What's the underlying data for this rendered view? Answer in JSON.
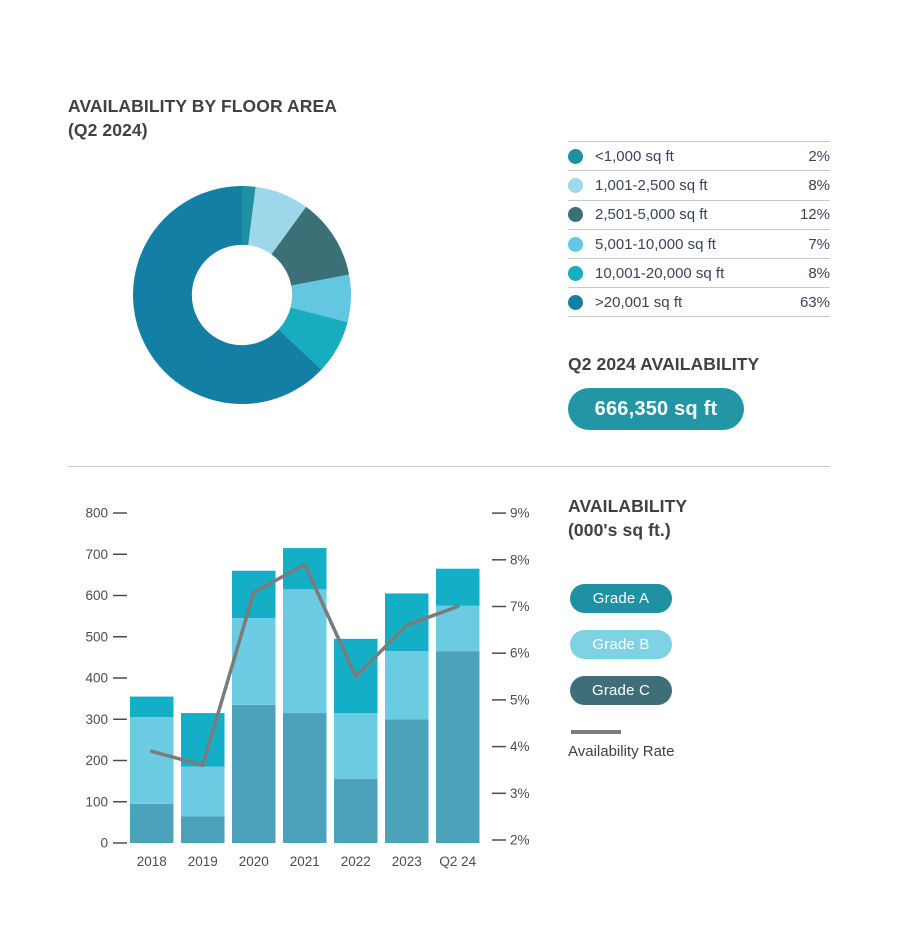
{
  "donut_section": {
    "title_line1": "AVAILABILITY BY FLOOR AREA",
    "title_line2": "(Q2 2024)",
    "legend": [
      {
        "label": "<1,000 sq ft",
        "value": "2%",
        "color": "#1E90A0"
      },
      {
        "label": "1,001-2,500 sq ft",
        "value": "8%",
        "color": "#9CD8EA"
      },
      {
        "label": "2,501-5,000 sq ft",
        "value": "12%",
        "color": "#3C7077"
      },
      {
        "label": "5,001-10,000 sq ft",
        "value": "7%",
        "color": "#64C7E2"
      },
      {
        "label": "10,001-20,000 sq ft",
        "value": "8%",
        "color": "#17ACBE"
      },
      {
        "label": ">20,001 sq ft",
        "value": "63%",
        "color": "#147FA5"
      }
    ],
    "availability_heading": "Q2 2024 AVAILABILITY",
    "availability_badge": "666,350 sq ft",
    "badge_color": "#2296A4"
  },
  "bar_section": {
    "heading_line1": "AVAILABILITY",
    "heading_line2": "(000's sq ft.)",
    "pills": [
      {
        "label": "Grade A",
        "color": "#1E91A2"
      },
      {
        "label": "Grade B",
        "color": "#7ED2E4"
      },
      {
        "label": "Grade C",
        "color": "#3E6F78"
      }
    ],
    "line_legend_label": "Availability Rate",
    "line_color": "#7B7B7B"
  },
  "chart_data": [
    {
      "type": "pie",
      "title": "AVAILABILITY BY FLOOR AREA (Q2 2024)",
      "labels": [
        "<1,000 sq ft",
        "1,001-2,500 sq ft",
        "2,501-5,000 sq ft",
        "5,001-10,000 sq ft",
        "10,001-20,000 sq ft",
        ">20,001 sq ft"
      ],
      "values_pct": [
        2,
        8,
        12,
        7,
        8,
        63
      ],
      "colors": [
        "#1E90A0",
        "#9CD8EA",
        "#3C7077",
        "#64C7E2",
        "#17ACBE",
        "#147FA5"
      ],
      "donut_inner_ratio": 0.46,
      "start_angle_deg": 0,
      "direction": "clockwise"
    },
    {
      "type": "bar",
      "title": "AVAILABILITY (000's sq ft.)",
      "stacked": true,
      "categories": [
        "2018",
        "2019",
        "2020",
        "2021",
        "2022",
        "2023",
        "Q2 24"
      ],
      "series": [
        {
          "name": "Grade C",
          "color": "#4BA2BA",
          "values": [
            95,
            65,
            335,
            315,
            155,
            300,
            465
          ]
        },
        {
          "name": "Grade B",
          "color": "#6BCBE3",
          "values": [
            210,
            120,
            210,
            300,
            160,
            165,
            110
          ]
        },
        {
          "name": "Grade A",
          "color": "#14AFC7",
          "values": [
            50,
            130,
            115,
            100,
            180,
            140,
            90
          ]
        }
      ],
      "totals": [
        355,
        315,
        660,
        715,
        495,
        605,
        665
      ],
      "line_series": {
        "name": "Availability Rate",
        "color": "#7B7B7B",
        "axis": "right",
        "values_pct": [
          3.9,
          3.6,
          7.3,
          7.9,
          5.5,
          6.6,
          7.0
        ]
      },
      "left_axis": {
        "label": "",
        "min": 0,
        "max": 800,
        "step": 100,
        "ticks": [
          "0",
          "100",
          "200",
          "300",
          "400",
          "500",
          "600",
          "700",
          "800"
        ]
      },
      "right_axis": {
        "label": "",
        "min": 2,
        "max": 9,
        "step": 1,
        "ticks": [
          "2%",
          "3%",
          "4%",
          "5%",
          "6%",
          "7%",
          "8%",
          "9%"
        ]
      },
      "grid": false,
      "legend_position": "right"
    }
  ]
}
